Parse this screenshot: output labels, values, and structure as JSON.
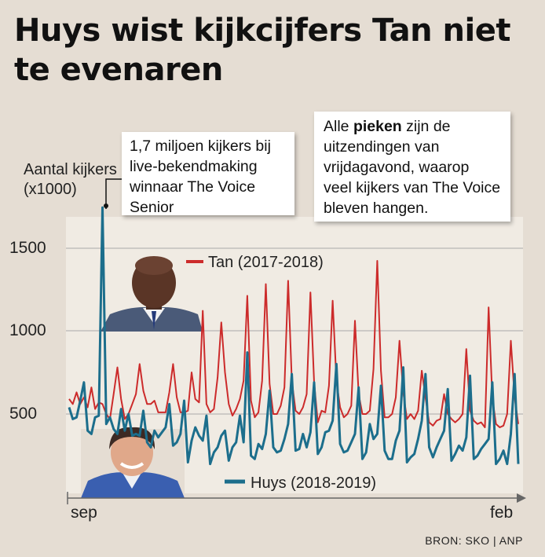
{
  "title": "Huys wist kijkcijfers Tan niet te evenaren",
  "callouts": {
    "peak_note": "1,7 miljoen kijkers bij live-bekendmaking winnaar The Voice Senior",
    "peaks_pre": "Alle ",
    "peaks_bold": "pieken",
    "peaks_post": " zijn de uitzendingen van vrijdagavond, waarop veel kijkers van The Voice bleven hangen."
  },
  "photos": {
    "top": "Tan",
    "bottom": "Huys"
  },
  "source": "BRON:  SKO  | ANP",
  "chart_data": {
    "type": "line",
    "title": "Huys wist kijkcijfers Tan niet te evenaren",
    "ylabel": "Aantal kijkers (x1000)",
    "xlabel": "",
    "xtick_labels": [
      "sep",
      "feb"
    ],
    "yticks": [
      500,
      1000,
      1500
    ],
    "ylim": [
      0,
      1800
    ],
    "grid": true,
    "legend": "in-plot labels",
    "series": [
      {
        "name": "Tan (2017-2018)",
        "color": "#cc2b2b",
        "values": [
          590,
          560,
          630,
          560,
          600,
          540,
          660,
          530,
          570,
          560,
          500,
          470,
          620,
          780,
          590,
          470,
          500,
          560,
          620,
          800,
          640,
          560,
          560,
          580,
          510,
          510,
          510,
          630,
          800,
          600,
          510,
          510,
          520,
          750,
          590,
          570,
          1120,
          560,
          510,
          530,
          720,
          1050,
          750,
          560,
          490,
          530,
          590,
          700,
          1210,
          580,
          480,
          510,
          700,
          1280,
          680,
          500,
          500,
          550,
          660,
          1300,
          700,
          520,
          500,
          540,
          620,
          1230,
          690,
          450,
          520,
          510,
          670,
          1180,
          700,
          540,
          480,
          500,
          550,
          1060,
          620,
          500,
          500,
          520,
          770,
          1420,
          760,
          480,
          480,
          500,
          600,
          940,
          630,
          470,
          500,
          470,
          520,
          760,
          600,
          450,
          430,
          460,
          470,
          620,
          500,
          470,
          450,
          470,
          500,
          890,
          520,
          460,
          440,
          450,
          420,
          1140,
          600,
          440,
          420,
          430,
          500,
          940,
          600,
          440
        ]
      },
      {
        "name": "Huys (2018-2019)",
        "color": "#1c6e8c",
        "values": [
          540,
          470,
          480,
          580,
          690,
          400,
          380,
          480,
          490,
          1740,
          440,
          480,
          410,
          380,
          530,
          400,
          500,
          370,
          380,
          370,
          520,
          330,
          300,
          400,
          360,
          390,
          420,
          560,
          310,
          330,
          380,
          580,
          210,
          340,
          420,
          370,
          340,
          490,
          200,
          270,
          300,
          370,
          400,
          220,
          300,
          330,
          490,
          330,
          870,
          250,
          230,
          320,
          290,
          380,
          640,
          300,
          270,
          280,
          350,
          440,
          740,
          280,
          290,
          380,
          300,
          390,
          690,
          260,
          300,
          390,
          400,
          460,
          800,
          320,
          270,
          280,
          330,
          380,
          660,
          230,
          270,
          440,
          350,
          380,
          670,
          280,
          230,
          230,
          340,
          400,
          780,
          210,
          240,
          260,
          350,
          460,
          740,
          300,
          240,
          300,
          350,
          400,
          650,
          220,
          260,
          310,
          280,
          360,
          730,
          230,
          250,
          290,
          320,
          350,
          690,
          200,
          230,
          280,
          200,
          380,
          740,
          200
        ]
      }
    ]
  }
}
